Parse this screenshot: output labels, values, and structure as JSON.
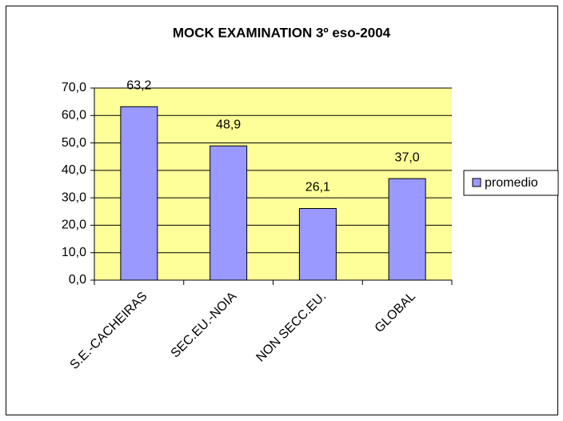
{
  "chart_data": {
    "type": "bar",
    "title": "MOCK EXAMINATION 3º eso-2004",
    "categories": [
      "S.E.-CACHEIRAS",
      "SEC.EU.-NOIA",
      "NON SECC.EU.",
      "GLOBAL"
    ],
    "series": [
      {
        "name": "promedio",
        "color": "#9999ff",
        "values": [
          63.2,
          48.9,
          26.1,
          37.0
        ],
        "value_labels": [
          "63,2",
          "48,9",
          "26,1",
          "37,0"
        ]
      }
    ],
    "ylim": [
      0,
      70
    ],
    "yticks": [
      {
        "value": 0,
        "label": "0,0"
      },
      {
        "value": 10,
        "label": "10,0"
      },
      {
        "value": 20,
        "label": "20,0"
      },
      {
        "value": 30,
        "label": "30,0"
      },
      {
        "value": 40,
        "label": "40,0"
      },
      {
        "value": 50,
        "label": "50,0"
      },
      {
        "value": 60,
        "label": "60,0"
      },
      {
        "value": 70,
        "label": "70,0"
      }
    ],
    "grid": true,
    "plot_background": "#ffff99",
    "legend": "right"
  }
}
